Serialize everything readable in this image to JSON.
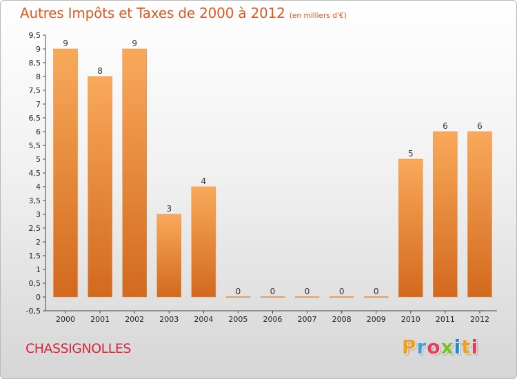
{
  "title": "Autres Impôts et Taxes de 2000 à 2012",
  "subtitle": "(en milliers d'€)",
  "commune": "CHASSIGNOLLES",
  "logo": {
    "letters": [
      "P",
      "r",
      "o",
      "x",
      "i",
      "t",
      "i"
    ],
    "colors": [
      "#f0a020",
      "#3aa3d8",
      "#e83c5a",
      "#7cbf2a",
      "#1e8ad6",
      "#f0a020",
      "#e83c5a"
    ]
  },
  "colors": {
    "title": "#e0581d",
    "commune": "#d8263a",
    "bar_top": "#f9a95a",
    "bar_bottom": "#d2691e"
  },
  "chart_data": {
    "type": "bar",
    "categories": [
      "2000",
      "2001",
      "2002",
      "2003",
      "2004",
      "2005",
      "2006",
      "2007",
      "2008",
      "2009",
      "2010",
      "2011",
      "2012"
    ],
    "values": [
      9,
      8,
      9,
      3,
      4,
      0,
      0,
      0,
      0,
      0,
      5,
      6,
      6
    ],
    "data_labels": [
      "9",
      "8",
      "9",
      "3",
      "4",
      "0",
      "0",
      "0",
      "0",
      "0",
      "5",
      "6",
      "6"
    ],
    "ylim": [
      -0.5,
      9.5
    ],
    "yticks": [
      "-0,5",
      "0",
      "0,5",
      "1",
      "1,5",
      "2",
      "2,5",
      "3",
      "3,5",
      "4",
      "4,5",
      "5",
      "5,5",
      "6",
      "6,5",
      "7",
      "7,5",
      "8",
      "8,5",
      "9",
      "9,5"
    ],
    "grid": false,
    "legend": "none"
  }
}
